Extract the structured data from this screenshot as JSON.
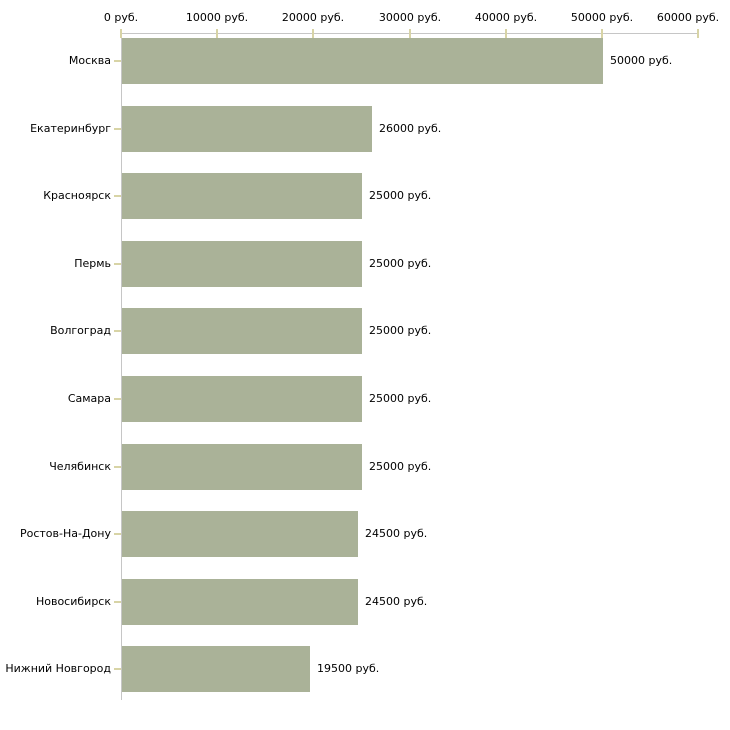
{
  "chart_data": {
    "type": "bar",
    "orientation": "horizontal",
    "background": "#ffffff",
    "categories": [
      "Москва",
      "Екатеринбург",
      "Красноярск",
      "Пермь",
      "Волгоград",
      "Самара",
      "Челябинск",
      "Ростов-На-Дону",
      "Новосибирск",
      "Нижний Новгород"
    ],
    "values": [
      50000,
      26000,
      25000,
      25000,
      25000,
      25000,
      25000,
      24500,
      24500,
      19500
    ],
    "value_labels": [
      "50000 руб.",
      "26000 руб.",
      "25000 руб.",
      "25000 руб.",
      "25000 руб.",
      "25000 руб.",
      "25000 руб.",
      "24500 руб.",
      "24500 руб.",
      "19500 руб."
    ],
    "x_axis": {
      "position": "top",
      "range": [
        0,
        60000
      ],
      "ticks": [
        0,
        10000,
        20000,
        30000,
        40000,
        50000,
        60000
      ],
      "tick_labels": [
        "0 руб.",
        "10000 руб.",
        "20000 руб.",
        "30000 руб.",
        "40000 руб.",
        "50000 руб.",
        "60000 руб."
      ]
    },
    "grid": false,
    "legend": false,
    "colors": {
      "bar": "#aab298",
      "axis_line": "#c6c6c6",
      "tick_mark": "#d8d4a6",
      "text": "#000000"
    }
  }
}
